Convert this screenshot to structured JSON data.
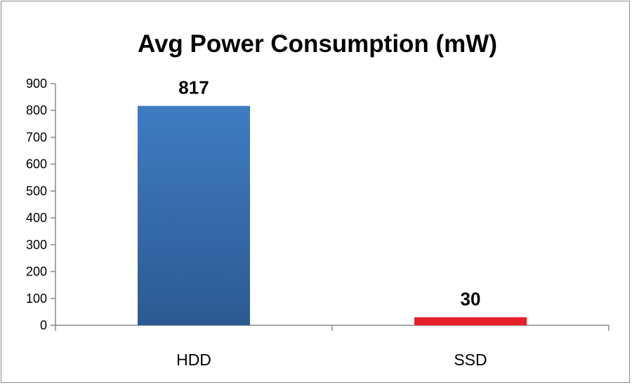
{
  "chart_data": {
    "type": "bar",
    "title": "Avg Power Consumption (mW)",
    "categories": [
      "HDD",
      "SSD"
    ],
    "values": [
      817,
      30
    ],
    "data_labels": [
      "817",
      "30"
    ],
    "colors": [
      "#3a6fb0",
      "#e8202a"
    ],
    "ylim": [
      0,
      900
    ],
    "yticks": [
      0,
      100,
      200,
      300,
      400,
      500,
      600,
      700,
      800,
      900
    ],
    "ytick_labels": [
      "0",
      "100",
      "200",
      "300",
      "400",
      "500",
      "600",
      "700",
      "800",
      "900"
    ],
    "grid": false,
    "legend": "none"
  }
}
